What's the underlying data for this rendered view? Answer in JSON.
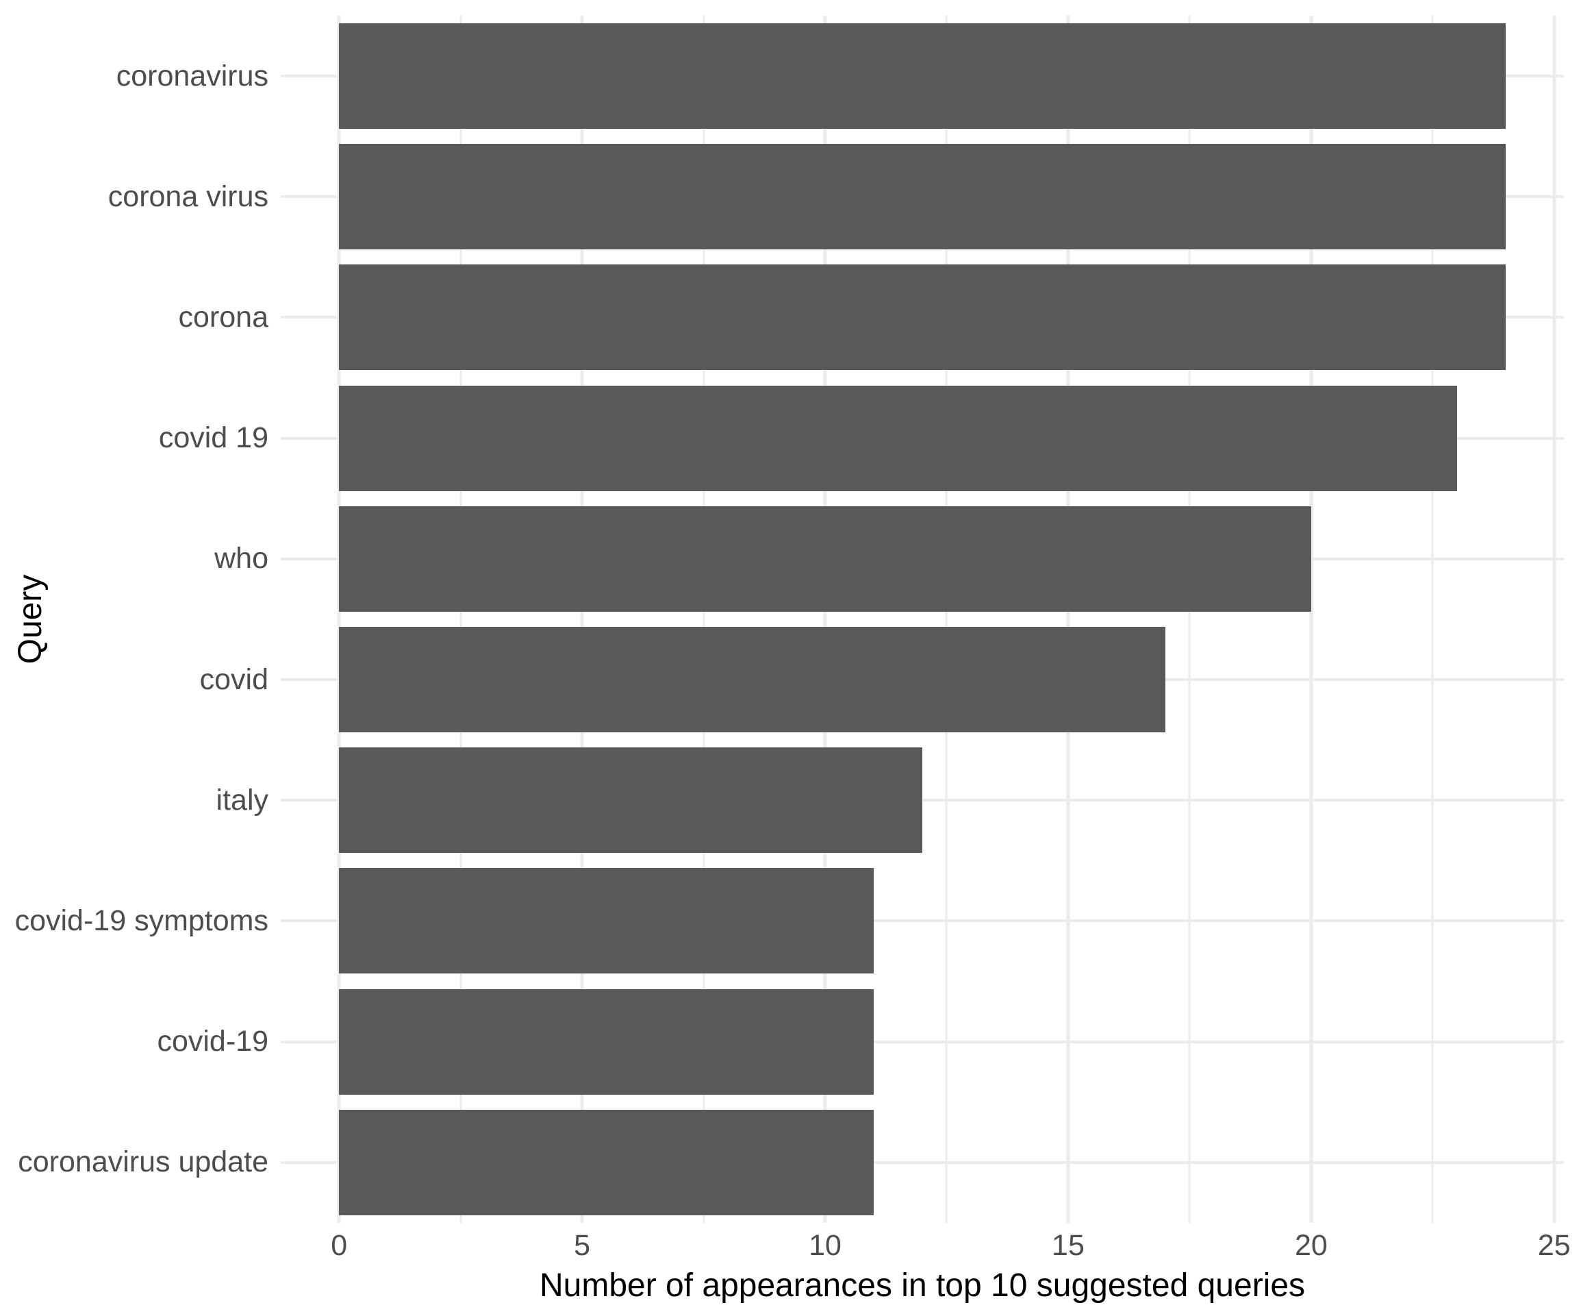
{
  "chart_data": {
    "type": "bar",
    "orientation": "horizontal",
    "title": "",
    "xlabel": "Number of appearances in top 10 suggested queries",
    "ylabel": "Query",
    "categories": [
      "coronavirus",
      "corona virus",
      "corona",
      "covid 19",
      "who",
      "covid",
      "italy",
      "covid-19 symptoms",
      "covid-19",
      "coronavirus update"
    ],
    "values": [
      24,
      24,
      24,
      23,
      20,
      17,
      12,
      11,
      11,
      11
    ],
    "x_ticks": [
      0,
      5,
      10,
      15,
      20,
      25
    ],
    "x_minor_ticks": [
      2.5,
      7.5,
      12.5,
      17.5,
      22.5
    ],
    "xlim": [
      -1.2,
      25.2
    ],
    "grid": "major-and-minor",
    "legend": "none",
    "colors": {
      "bar": "#595959",
      "grid": "#EBEBEB",
      "tick_text": "#4D4D4D",
      "axis_title_text": "#000000",
      "background": "#FFFFFF"
    }
  }
}
